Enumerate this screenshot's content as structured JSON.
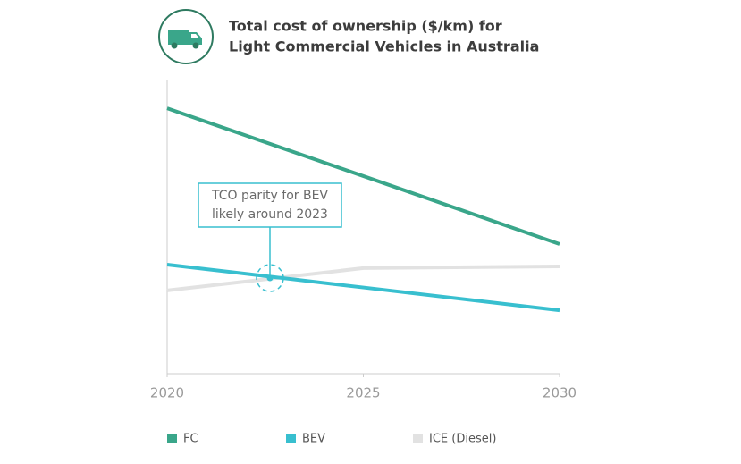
{
  "chart_data": {
    "type": "line",
    "title": [
      "Total cost of ownership ($/km) for",
      "Light Commercial Vehicles in Australia"
    ],
    "x": [
      2020,
      2025,
      2030
    ],
    "xlim": [
      2020,
      2030
    ],
    "xticks": [
      2020,
      2025,
      2030
    ],
    "ylim": [
      0,
      100
    ],
    "series": [
      {
        "name": "FC",
        "color": "#3aa68a",
        "values": [
          90.5,
          67.4,
          44.2
        ]
      },
      {
        "name": "BEV",
        "color": "#38bfcf",
        "values": [
          37.2,
          29.4,
          21.6
        ]
      },
      {
        "name": "ICE (Diesel)",
        "color": "#e2e2e2",
        "values": [
          28.4,
          36.0,
          36.6
        ]
      }
    ],
    "annotation": [
      "TCO parity for BEV",
      "likely around 2023"
    ]
  }
}
